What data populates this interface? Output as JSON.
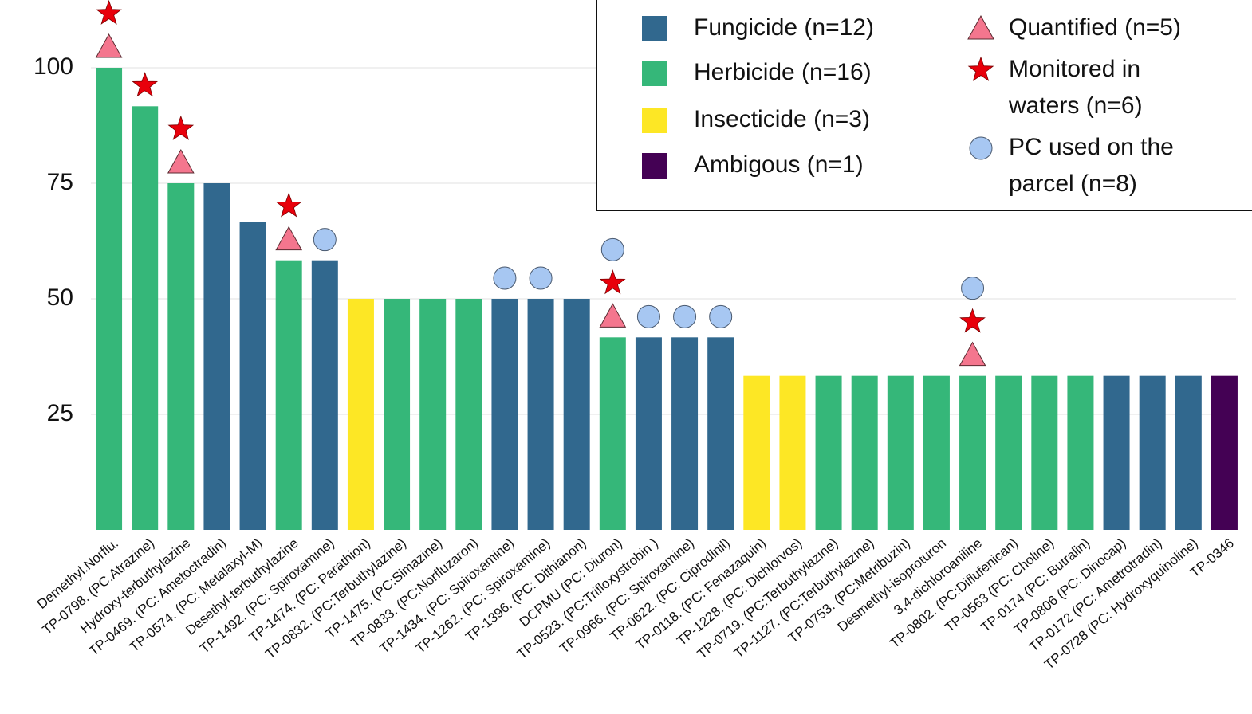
{
  "chart_data": {
    "type": "bar",
    "categories": [
      "Demethyl.Norflu.",
      "TP-0798. (PC.Atrazine)",
      "Hydroxy-terbuthylazine",
      "TP-0469. (PC: Ametoctradin)",
      "TP-0574. (PC: Metalaxyl-M)",
      "Desethyl-terbuthylazine",
      "TP-1492. (PC: Spiroxamine)",
      "TP-1474. (PC: Parathion)",
      "TP-0832. (PC:Terbuthylazine)",
      "TP-1475. (PC:Simazine)",
      "TP-0833. (PC:Norfluzaron)",
      "TP-1434. (PC: Spiroxamine)",
      "TP-1262. (PC: Spiroxamine)",
      "TP-1396. (PC: Dithianon)",
      "DCPMU (PC: Diuron)",
      "TP-0523. (PC:Trifloxystrobin )",
      "TP-0966. (PC: Spiroxamine)",
      "TP-0622. (PC: Ciprodinil)",
      "TP-0118. (PC: Fenazaquin)",
      "TP-1228. (PC: Dichlorvos)",
      "TP-0719. (PC:Terbuthylazine)",
      "TP-1127. (PC:Terbuthylazine)",
      "TP-0753. (PC:Metribuzin)",
      "Desmethyl-isoproturon",
      "3,4-dichloroaniline",
      "TP-0802. (PC:Diflufenican)",
      "TP-0563 (PC: Choline)",
      "TP-0174 (PC: Butralin)",
      "TP-0806 (PC: Dinocap)",
      "TP-0172 (PC: Ametrotradin)",
      "TP-0728 (PC: Hydroxyquinoline)",
      "TP-0346"
    ],
    "series": [
      {
        "name": "Fungicide (n=12)",
        "color": "#31688e",
        "values": [
          null,
          null,
          null,
          75,
          66.67,
          null,
          58.33,
          null,
          null,
          null,
          null,
          50,
          50,
          50,
          null,
          41.67,
          41.67,
          41.67,
          null,
          null,
          null,
          null,
          null,
          null,
          null,
          null,
          null,
          null,
          33.33,
          33.33,
          33.33,
          null
        ]
      },
      {
        "name": "Herbicide (n=16)",
        "color": "#35b779",
        "values": [
          100,
          91.67,
          75,
          null,
          null,
          58.33,
          null,
          null,
          50,
          50,
          50,
          null,
          null,
          null,
          41.67,
          null,
          null,
          null,
          null,
          null,
          33.33,
          33.33,
          33.33,
          33.33,
          33.33,
          33.33,
          33.33,
          33.33,
          null,
          null,
          null,
          null
        ]
      },
      {
        "name": "Insecticide (n=3)",
        "color": "#fde725",
        "values": [
          null,
          null,
          null,
          null,
          null,
          null,
          null,
          50,
          null,
          null,
          null,
          null,
          null,
          null,
          null,
          null,
          null,
          null,
          33.33,
          33.33,
          null,
          null,
          null,
          null,
          null,
          null,
          null,
          null,
          null,
          null,
          null,
          null
        ]
      },
      {
        "name": "Ambigous (n=1)",
        "color": "#440154",
        "values": [
          null,
          null,
          null,
          null,
          null,
          null,
          null,
          null,
          null,
          null,
          null,
          null,
          null,
          null,
          null,
          null,
          null,
          null,
          null,
          null,
          null,
          null,
          null,
          null,
          null,
          null,
          null,
          null,
          null,
          null,
          null,
          33.33
        ]
      }
    ],
    "markers": [
      {
        "name": "Quantified (n=5)",
        "shape": "triangle",
        "color": "#f4768e",
        "flags": [
          true,
          false,
          true,
          false,
          false,
          true,
          false,
          false,
          false,
          false,
          false,
          false,
          false,
          false,
          true,
          false,
          false,
          false,
          false,
          false,
          false,
          false,
          false,
          false,
          true,
          false,
          false,
          false,
          false,
          false,
          false,
          false
        ]
      },
      {
        "name": "Monitored in waters (n=6)",
        "shape": "star",
        "color": "#e8000b",
        "flags": [
          true,
          true,
          true,
          false,
          false,
          true,
          false,
          false,
          false,
          false,
          false,
          false,
          false,
          false,
          true,
          false,
          false,
          false,
          false,
          false,
          false,
          false,
          false,
          false,
          true,
          false,
          false,
          false,
          false,
          false,
          false,
          false
        ]
      },
      {
        "name": "PC used on the parcel (n=8)",
        "shape": "circle",
        "color": "#a7c7f2",
        "flags": [
          false,
          false,
          false,
          false,
          false,
          false,
          true,
          false,
          false,
          false,
          false,
          true,
          true,
          false,
          true,
          true,
          true,
          true,
          false,
          false,
          false,
          false,
          false,
          false,
          true,
          false,
          false,
          false,
          false,
          false,
          false,
          false
        ]
      }
    ],
    "ylim": [
      0,
      115
    ],
    "yticks": [
      25,
      50,
      75,
      100
    ],
    "grid": true
  }
}
